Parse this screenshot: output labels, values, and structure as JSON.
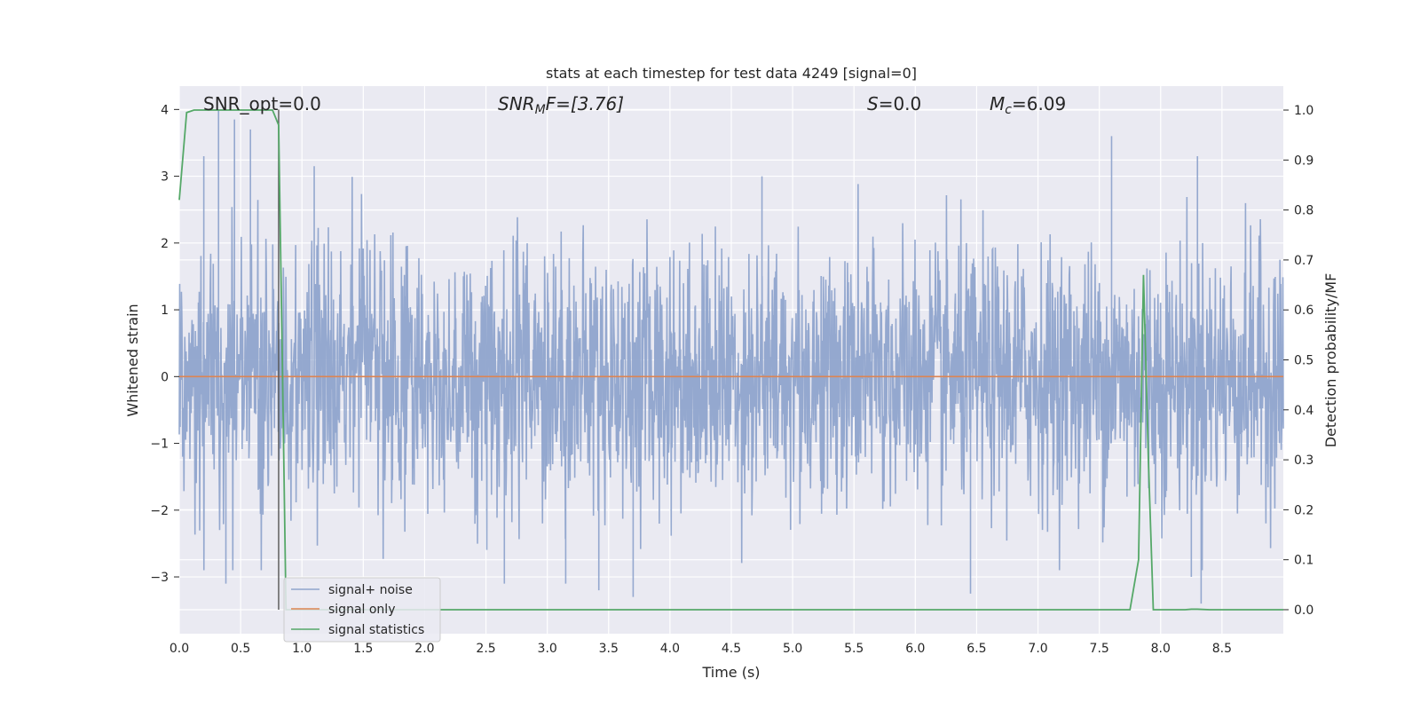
{
  "chart_data": {
    "type": "line",
    "title": "stats at each timestep for test data 4249 [signal=0]",
    "xlabel": "Time (s)",
    "ylabel": "Whitened strain",
    "ylabel_right": "Detection probability/MF",
    "xlim": [
      0.0,
      9.0
    ],
    "ylim": [
      -3.85,
      4.35
    ],
    "ylim_right": [
      -0.048,
      1.048
    ],
    "x_ticks": [
      "0.0",
      "0.5",
      "1.0",
      "1.5",
      "2.0",
      "2.5",
      "3.0",
      "3.5",
      "4.0",
      "4.5",
      "5.0",
      "5.5",
      "6.0",
      "6.5",
      "7.0",
      "7.5",
      "8.0",
      "8.5"
    ],
    "y_ticks": [
      "4",
      "3",
      "2",
      "1",
      "0",
      "−1",
      "−2",
      "−3"
    ],
    "y_ticks_right": [
      "1.0",
      "0.9",
      "0.8",
      "0.7",
      "0.6",
      "0.5",
      "0.4",
      "0.3",
      "0.2",
      "0.1",
      "0.0"
    ],
    "grid": true,
    "legend_position": "lower-left",
    "annotations": {
      "snr_opt": "SNR_opt=0.0",
      "snr_mf_label": "SNR",
      "snr_mf_sub": "M",
      "snr_mf_rest": "F=[3.76]",
      "s_label": "S",
      "s_rest": "=0.0",
      "mc_label": "M",
      "mc_sub": "c",
      "mc_rest": "=6.09"
    },
    "marker_x": 0.81,
    "series": [
      {
        "name": "signal+ noise",
        "color": "#8fa4cc",
        "description": "whitened noise, dense, roughly within ±2 with spikes to ±4",
        "spikes_high": [
          [
            0.32,
            4.0
          ],
          [
            0.45,
            3.85
          ],
          [
            0.58,
            3.7
          ],
          [
            0.2,
            3.3
          ],
          [
            8.3,
            3.3
          ],
          [
            7.6,
            3.6
          ],
          [
            1.1,
            3.15
          ],
          [
            4.75,
            3.0
          ]
        ],
        "spikes_low": [
          [
            0.38,
            -3.1
          ],
          [
            3.42,
            -3.2
          ],
          [
            3.7,
            -3.3
          ],
          [
            6.45,
            -3.25
          ],
          [
            8.33,
            -3.4
          ],
          [
            8.25,
            -3.0
          ],
          [
            2.65,
            -3.1
          ],
          [
            3.15,
            -3.1
          ]
        ]
      },
      {
        "name": "signal only",
        "color": "#dd8452",
        "x": [
          0.0,
          9.0
        ],
        "y": [
          0.0,
          0.0
        ]
      },
      {
        "name": "signal statistics",
        "color": "#55a868",
        "axis": "right",
        "x": [
          0.0,
          0.06,
          0.12,
          0.2,
          0.4,
          0.6,
          0.7,
          0.76,
          0.81,
          0.84,
          0.87,
          0.9,
          1.0,
          2.0,
          3.0,
          4.0,
          5.0,
          6.0,
          7.0,
          7.5,
          7.75,
          7.82,
          7.86,
          7.9,
          7.94,
          8.0,
          8.2,
          8.25,
          8.3,
          8.4,
          8.6,
          9.0
        ],
        "y": [
          0.82,
          0.995,
          1.0,
          1.0,
          1.0,
          1.0,
          1.0,
          1.0,
          0.97,
          0.5,
          0.0,
          0.0,
          0.0,
          0.0,
          0.0,
          0.0,
          0.0,
          0.0,
          0.0,
          0.0,
          0.0,
          0.1,
          0.67,
          0.3,
          0.0,
          0.0,
          0.0,
          0.001,
          0.001,
          0.0,
          0.0,
          0.0
        ]
      }
    ]
  }
}
